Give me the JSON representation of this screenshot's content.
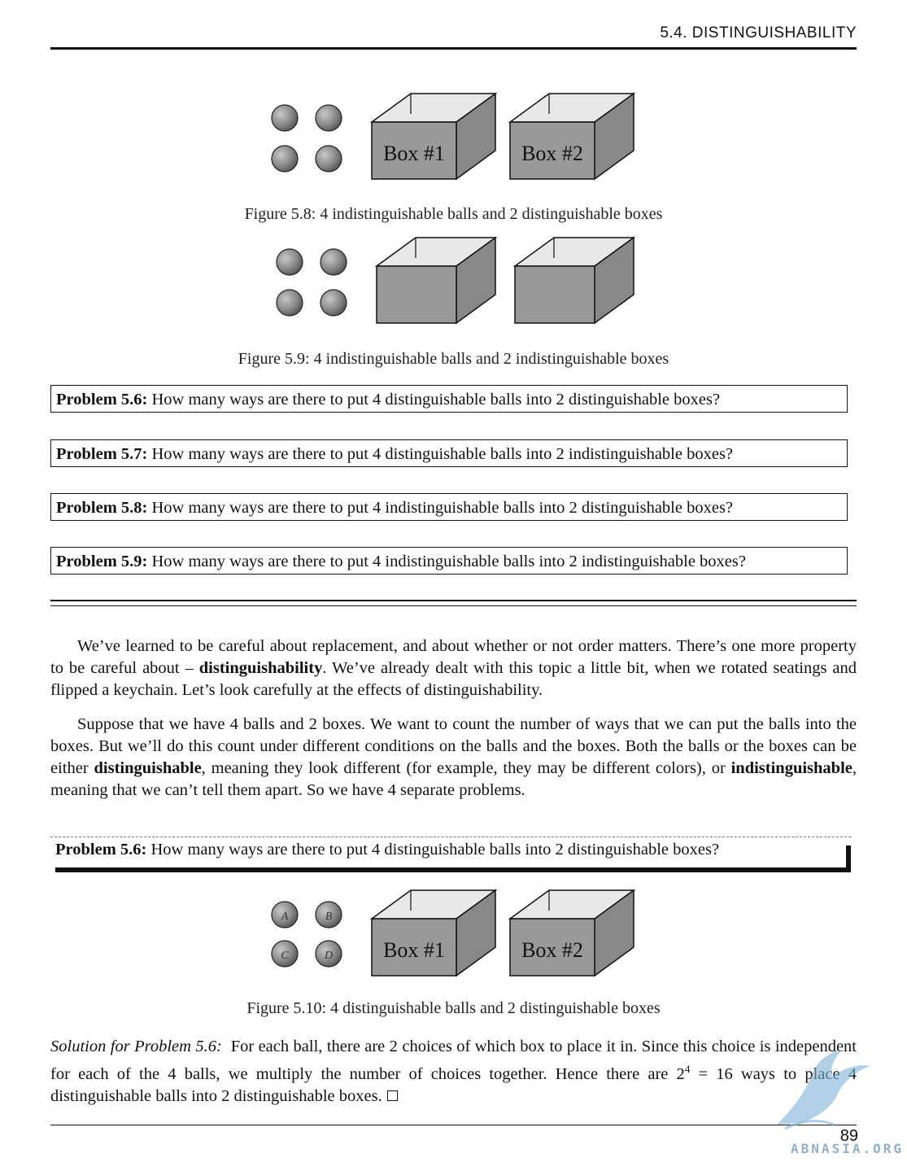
{
  "header": {
    "section_title": "5.4.  DISTINGUISHABILITY"
  },
  "figures": {
    "fig_5_8": {
      "caption": "Figure 5.8: 4 indistinguishable balls and 2 distinguishable boxes",
      "box1_label": "Box #1",
      "box2_label": "Box #2"
    },
    "fig_5_9": {
      "caption": "Figure 5.9: 4 indistinguishable balls and 2 indistinguishable boxes"
    },
    "fig_5_10": {
      "caption": "Figure 5.10: 4 distinguishable balls and 2 distinguishable boxes",
      "ball_labels": [
        "A",
        "B",
        "C",
        "D"
      ],
      "box1_label": "Box #1",
      "box2_label": "Box #2"
    }
  },
  "problems": [
    {
      "label": "Problem 5.6:",
      "text": "How many ways are there to put 4 distinguishable balls into 2 distinguishable boxes?"
    },
    {
      "label": "Problem 5.7:",
      "text": "How many ways are there to put 4 distinguishable balls into 2 indistinguishable boxes?"
    },
    {
      "label": "Problem 5.8:",
      "text": "How many ways are there to put 4 indistinguishable balls into 2 distinguishable boxes?"
    },
    {
      "label": "Problem 5.9:",
      "text": "How many ways are there to put 4 indistinguishable balls into 2 indistinguishable boxes?"
    }
  ],
  "paragraphs": {
    "p1_a": "We’ve learned to be careful about replacement, and about whether or not order matters. There’s one more property to be careful about – ",
    "p1_bold": "distinguishability",
    "p1_b": ". We’ve already dealt with this topic a little bit, when we rotated seatings and flipped a keychain. Let’s look carefully at the effects of distinguishability.",
    "p2_a": "Suppose that we have 4 balls and 2 boxes. We want to count the number of ways that we can put the balls into the boxes. But we’ll do this count under different conditions on the balls and the boxes. Both the balls or the boxes can be either ",
    "p2_bold1": "distinguishable",
    "p2_b": ", meaning they look different (for example, they may be different colors), or ",
    "p2_bold2": "indistinguishable",
    "p2_c": ", meaning that we can’t tell them apart. So we have 4 separate problems."
  },
  "problem_repeat": {
    "label": "Problem 5.6:",
    "text": "How many ways are there to put 4 distinguishable balls into 2 distinguishable boxes?"
  },
  "solution": {
    "label": "Solution for Problem 5.6:",
    "text_a": "For each ball, there are 2 choices of which box to place it in. Since this choice is independent for each of the 4 balls, we multiply the number of choices together. Hence there are 2",
    "exponent": "4",
    "text_b": " = 16 ways to place 4 distinguishable balls into 2 distinguishable boxes."
  },
  "footer": {
    "page_number": "89",
    "watermark": "ABNASIA.ORG"
  }
}
